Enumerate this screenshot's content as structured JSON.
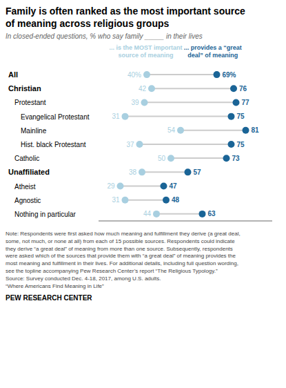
{
  "chart_data": {
    "type": "dumbbell",
    "title": "Family is often ranked as the most important source\nof meaning across religious groups",
    "subtitle": "In closed-ended questions, % who say family _____ in their lives",
    "categories": [
      "All",
      "Christian",
      "Protestant",
      "Evangelical Protestant",
      "Mainline",
      "Hist. black Protestant",
      "Catholic",
      "Unaffiliated",
      "Atheist",
      "Agnostic",
      "Nothing in particular"
    ],
    "series": [
      {
        "name": "... is the MOST important\nsource of meaning",
        "color": "#a8cfe0",
        "values": [
          40,
          42,
          39,
          31,
          54,
          37,
          50,
          38,
          29,
          31,
          44
        ],
        "value_labels": [
          "40%",
          "42",
          "39",
          "31",
          "54",
          "37",
          "50",
          "38",
          "29",
          "31",
          "44"
        ]
      },
      {
        "name": "... provides a “great\ndeal” of meaning",
        "color": "#1a6496",
        "values": [
          69,
          76,
          77,
          75,
          81,
          75,
          73,
          57,
          47,
          48,
          63
        ],
        "value_labels": [
          "69%",
          "76",
          "77",
          "75",
          "81",
          "75",
          "73",
          "57",
          "47",
          "48",
          "63"
        ]
      }
    ],
    "xlim": [
      20,
      92
    ],
    "orientation": "horizontal",
    "data_labels": true,
    "tick_labels": "y",
    "annotations": [
      "Note: Respondents were first asked how much meaning and fulfillment they derive (a great deal,\nsome, not much, or none at all) from each of 15 possible sources. Respondents could indicate\nthey derive “a great deal” of meaning from more than one source. Subsequently, respondents\nwere asked which of the sources that provide them with “a great deal” of meaning provides the\nmost meaning and fulfillment in their lives. For additional details, including full question wording,\nsee the topline accompanying Pew Research Center’s report “The Religious Typology.”\nSource: Survey conducted Dec. 4-18, 2017, among U.S. adults.\n“Where Americans Find Meaning in Life”",
      "PEW RESEARCH CENTER"
    ]
  }
}
